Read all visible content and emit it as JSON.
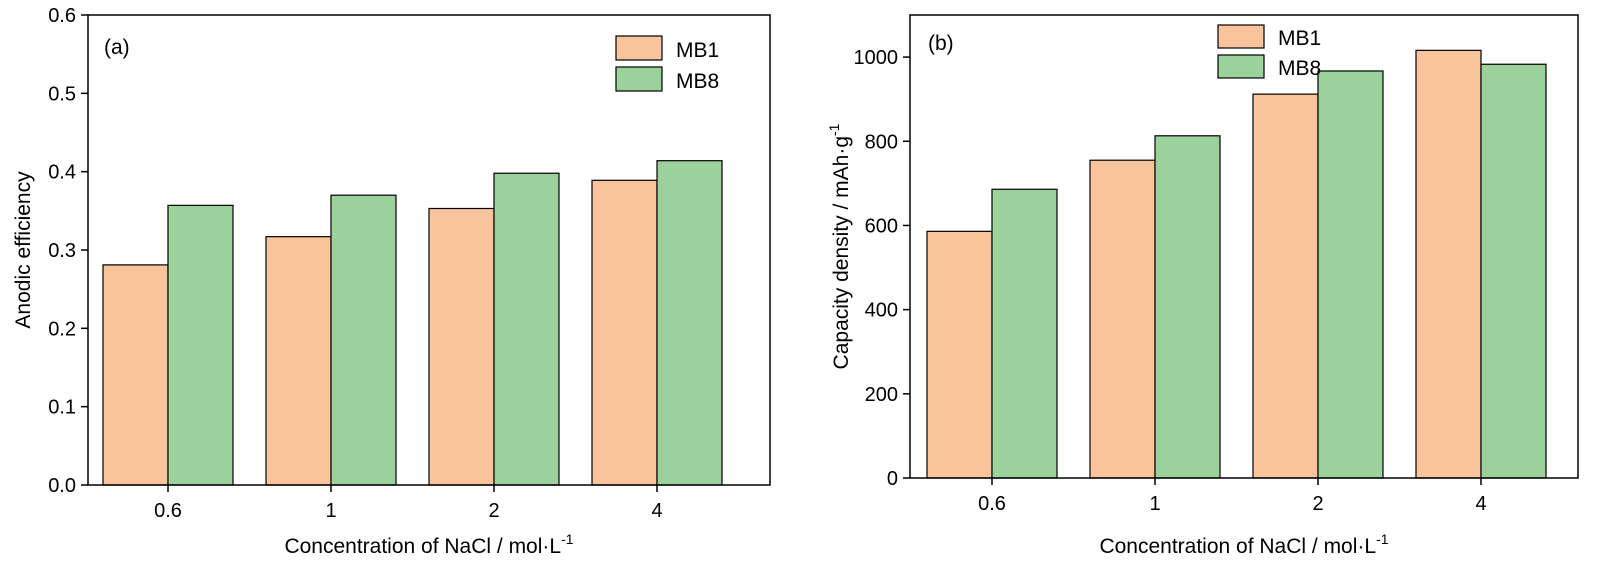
{
  "chart_data": [
    {
      "type": "bar",
      "panel_label": "(a)",
      "categories": [
        "0.6",
        "1",
        "2",
        "4"
      ],
      "series": [
        {
          "name": "MB1",
          "values": [
            0.281,
            0.317,
            0.353,
            0.389
          ]
        },
        {
          "name": "MB8",
          "values": [
            0.357,
            0.37,
            0.398,
            0.414
          ]
        }
      ],
      "xlabel": "Concentration of NaCl / mol·L",
      "xlabel_sup": "-1",
      "ylabel": "Anodic efficiency",
      "ylim": [
        0,
        0.6
      ],
      "yticks": [
        "0.0",
        "0.1",
        "0.2",
        "0.3",
        "0.4",
        "0.5",
        "0.6"
      ],
      "legend_position": "top-right",
      "grid": false
    },
    {
      "type": "bar",
      "panel_label": "(b)",
      "categories": [
        "0.6",
        "1",
        "2",
        "4"
      ],
      "series": [
        {
          "name": "MB1",
          "values": [
            586,
            755,
            912,
            1016
          ]
        },
        {
          "name": "MB8",
          "values": [
            686,
            813,
            967,
            983
          ]
        }
      ],
      "xlabel": "Concentration of NaCl / mol·L",
      "xlabel_sup": "-1",
      "ylabel": "Capacity density / mAh·g",
      "ylabel_sup": "-1",
      "ylim": [
        0,
        1100
      ],
      "yticks": [
        "0",
        "200",
        "400",
        "600",
        "800",
        "1000"
      ],
      "legend_position": "top-center",
      "grid": false
    }
  ],
  "colors": {
    "MB1": "#f9c39b",
    "MB8": "#9dd19c",
    "axis": "#000000"
  }
}
